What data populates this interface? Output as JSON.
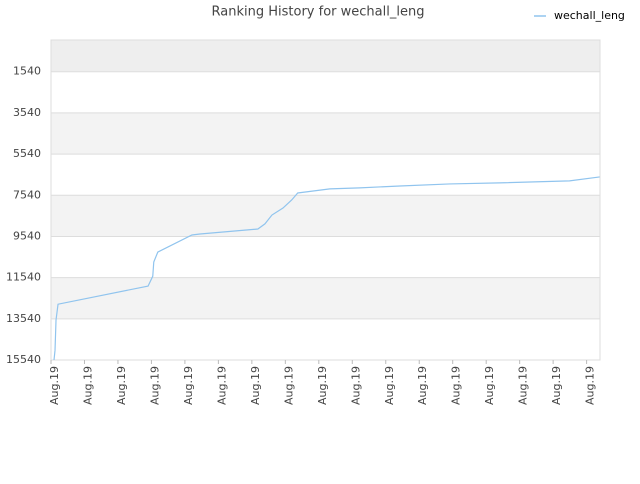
{
  "chart_data": {
    "type": "line",
    "title": "Ranking History for wechall_leng",
    "xlim": [
      0,
      16.4
    ],
    "xticks": [
      {
        "value": 0,
        "label": "Aug.19"
      },
      {
        "value": 1,
        "label": "Aug.19"
      },
      {
        "value": 2,
        "label": "Aug.19"
      },
      {
        "value": 3,
        "label": "Aug.19"
      },
      {
        "value": 4,
        "label": "Aug.19"
      },
      {
        "value": 5,
        "label": "Aug.19"
      },
      {
        "value": 6,
        "label": "Aug.19"
      },
      {
        "value": 7,
        "label": "Aug.19"
      },
      {
        "value": 8,
        "label": "Aug.19"
      },
      {
        "value": 9,
        "label": "Aug.19"
      },
      {
        "value": 10,
        "label": "Aug.19"
      },
      {
        "value": 11,
        "label": "Aug.19"
      },
      {
        "value": 12,
        "label": "Aug.19"
      },
      {
        "value": 13,
        "label": "Aug.19"
      },
      {
        "value": 14,
        "label": "Aug.19"
      },
      {
        "value": 15,
        "label": "Aug.19"
      },
      {
        "value": 16,
        "label": "Aug.19"
      }
    ],
    "ylim": [
      15540,
      0
    ],
    "yticks": [
      1540,
      3540,
      5540,
      7540,
      9540,
      11540,
      13540,
      15540
    ],
    "grid": true,
    "legend": "top-right",
    "x": [
      0.09,
      0.12,
      0.15,
      0.21,
      2.9,
      3.04,
      3.07,
      3.19,
      4.21,
      4.45,
      6.18,
      6.39,
      6.6,
      6.93,
      7.19,
      7.37,
      8.33,
      9.22,
      10.42,
      11.91,
      13.4,
      15.49,
      16.39
    ],
    "series": [
      {
        "name": "wechall_leng",
        "color": "#90c4ee",
        "values": [
          15540,
          15070,
          13600,
          12830,
          11950,
          11470,
          10780,
          10300,
          9470,
          9420,
          9180,
          8930,
          8500,
          8160,
          7770,
          7430,
          7230,
          7180,
          7090,
          6990,
          6940,
          6840,
          6650
        ]
      }
    ]
  }
}
